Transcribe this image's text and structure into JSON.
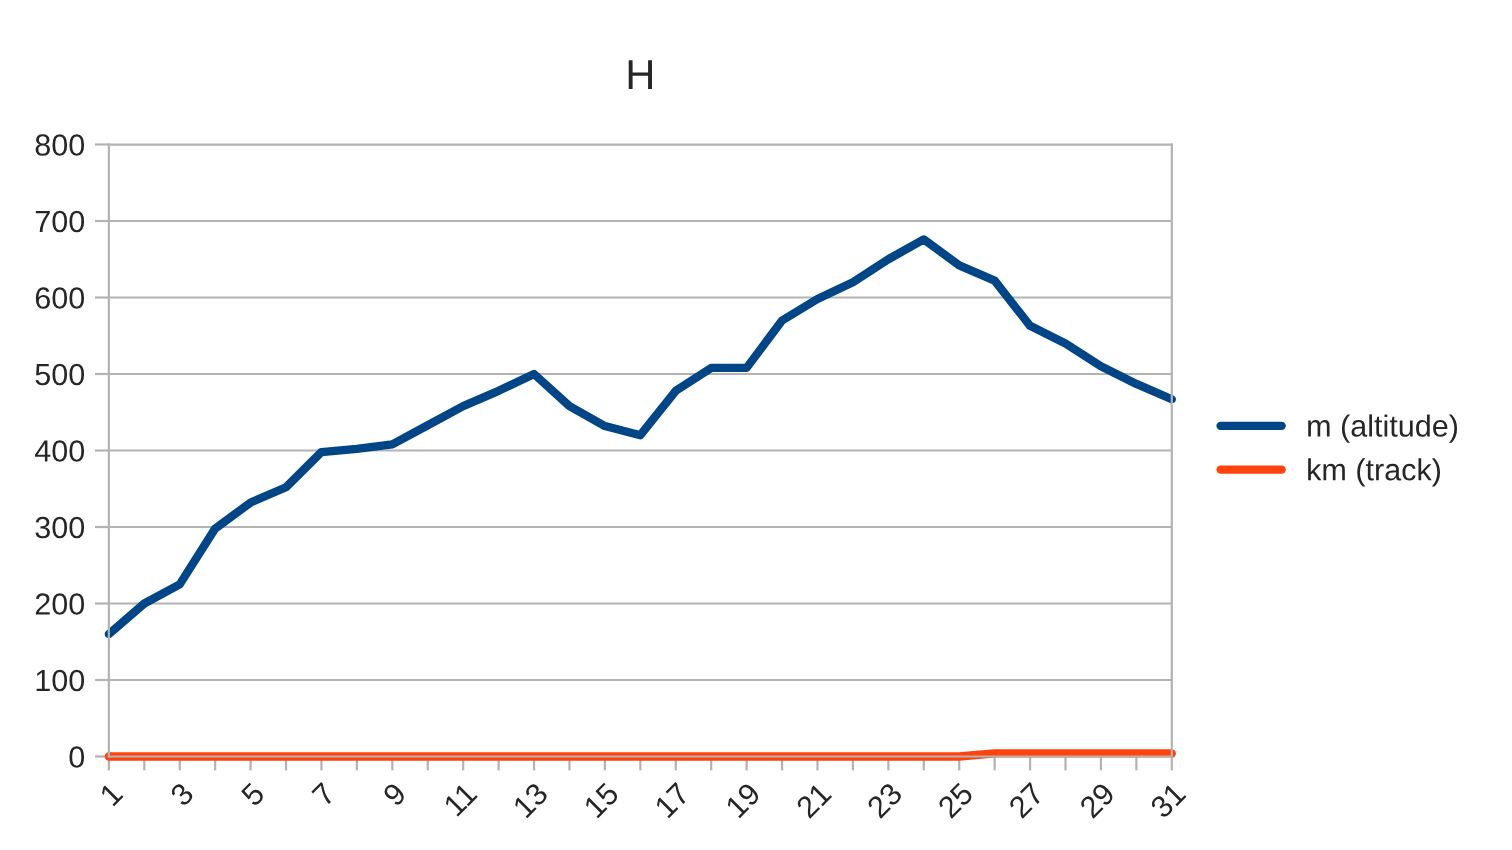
{
  "chart_data": {
    "type": "line",
    "title": "H",
    "categories": [
      "1",
      null,
      "3",
      null,
      "5",
      null,
      "7",
      null,
      "9",
      null,
      "11",
      null,
      "13",
      null,
      "15",
      null,
      "17",
      null,
      "19",
      null,
      "21",
      null,
      "23",
      null,
      "25",
      null,
      "27",
      null,
      "29",
      null,
      "31"
    ],
    "series": [
      {
        "name": "m (altitude)",
        "color": "#004586",
        "values": [
          160,
          200,
          225,
          298,
          332,
          352,
          398,
          402,
          408,
          433,
          458,
          478,
          500,
          458,
          432,
          420,
          478,
          508,
          508,
          570,
          598,
          620,
          650,
          676,
          642,
          622,
          563,
          540,
          510,
          487,
          467
        ]
      },
      {
        "name": "km (track)",
        "color": "#ff420e",
        "values": [
          0,
          0,
          0,
          0,
          0,
          0,
          0,
          0,
          0,
          0,
          0,
          0,
          0,
          0,
          0,
          0,
          0,
          0,
          0,
          0,
          0,
          0,
          0,
          0,
          0,
          4,
          4,
          4,
          4,
          4,
          4
        ]
      }
    ],
    "ylim": [
      0,
      800
    ],
    "yticks": [
      0,
      100,
      200,
      300,
      400,
      500,
      600,
      700,
      800
    ],
    "grid": "y",
    "legend": "right",
    "marker": "none",
    "line_style": "solid"
  }
}
